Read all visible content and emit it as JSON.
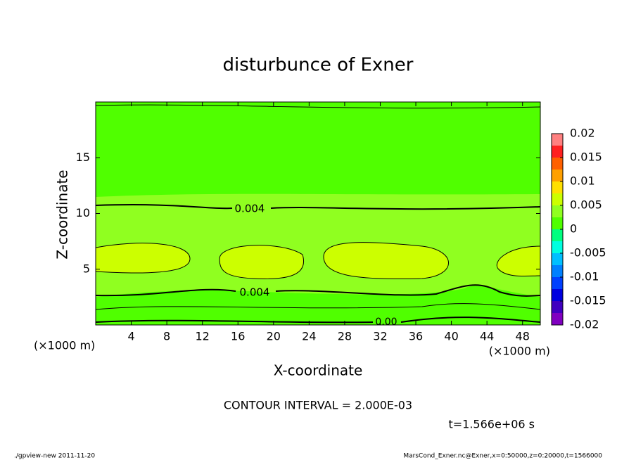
{
  "chart_data": {
    "type": "contour",
    "title": "disturbunce of Exner",
    "x_label": "X-coordinate",
    "y_label": "Z-coordinate",
    "x_unit": "(×1000 m)",
    "y_unit": "(×1000 m)",
    "xlim": [
      0,
      50
    ],
    "xticks": [
      4,
      8,
      12,
      16,
      20,
      24,
      28,
      32,
      36,
      40,
      44,
      48
    ],
    "ylim": [
      0,
      20
    ],
    "yticks": [
      5,
      10,
      15
    ],
    "colorbar": {
      "lim": [
        -0.02,
        0.02
      ],
      "ticks": [
        -0.02,
        -0.015,
        -0.01,
        -0.005,
        0,
        0.005,
        0.01,
        0.015,
        0.02
      ],
      "levels": [
        -0.02,
        -0.0175,
        -0.015,
        -0.0125,
        -0.01,
        -0.0075,
        -0.005,
        -0.0025,
        0,
        0.0025,
        0.005,
        0.0075,
        0.01,
        0.0125,
        0.015,
        0.0175,
        0.02
      ],
      "colors": [
        "#8000c0",
        "#4000c0",
        "#0000e0",
        "#0040ff",
        "#0080ff",
        "#00c0ff",
        "#00ffe0",
        "#00ff80",
        "#50ff00",
        "#90ff20",
        "#ccff00",
        "#ffe000",
        "#ffa000",
        "#ff6000",
        "#ff2020",
        "#ff8080"
      ]
    },
    "contour_labels": [
      "0.004",
      "0.004",
      "0.00"
    ],
    "contour_interval": "CONTOUR INTERVAL = 2.000E-03",
    "time": "t=1.566e+06 s",
    "footer_left": "./gpview-new   2011-11-20",
    "footer_right": "MarsCond_Exner.nc@Exner,x=0:50000,z=0:20000,t=1566000"
  }
}
